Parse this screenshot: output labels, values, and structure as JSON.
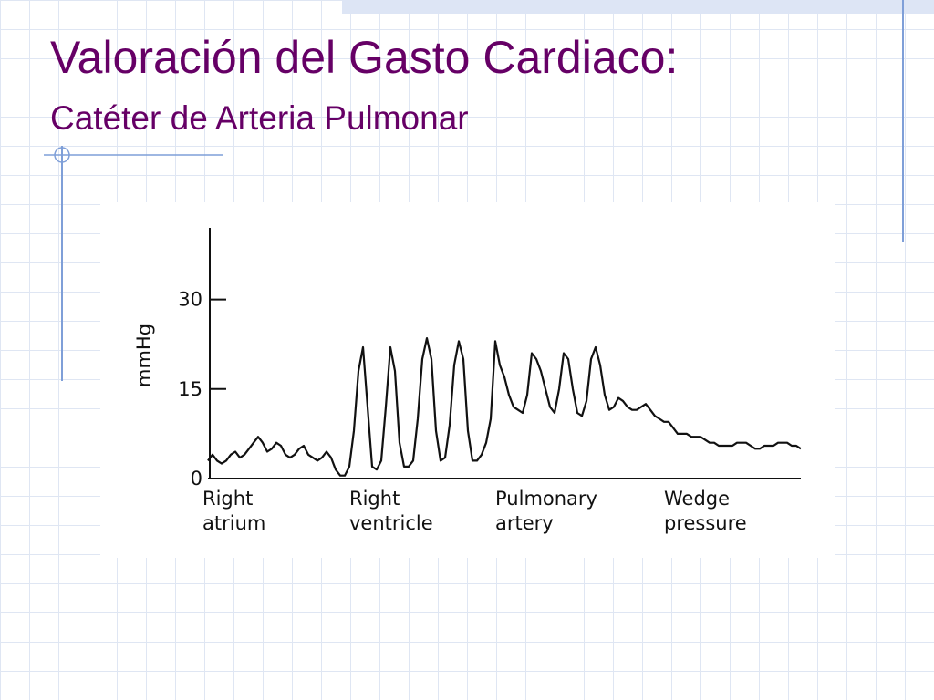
{
  "chart_data": {
    "type": "line",
    "title": "Valoración del Gasto Cardiaco:",
    "subtitle": "Catéter de Arteria Pulmonar",
    "ylabel": "mmHg",
    "ylim": [
      0,
      42
    ],
    "yticks": [
      0,
      15,
      30
    ],
    "color": "#111111",
    "region_labels": [
      [
        "Right",
        "atrium"
      ],
      [
        "Right",
        "ventricle"
      ],
      [
        "Pulmonary",
        "artery"
      ],
      [
        "Wedge",
        "pressure"
      ]
    ],
    "values": [
      3,
      4,
      3,
      2.5,
      3,
      4,
      4.5,
      3.5,
      4,
      5,
      6,
      7,
      6,
      4.5,
      5,
      6,
      5.5,
      4,
      3.5,
      4,
      5,
      5.5,
      4,
      3.5,
      3,
      3.5,
      4.5,
      3.5,
      1.5,
      0.5,
      0.5,
      2,
      8,
      18,
      22,
      12,
      2,
      1.5,
      3,
      12,
      22,
      18,
      6,
      2,
      2,
      3,
      10,
      20,
      23.5,
      20,
      8,
      3,
      3.5,
      9,
      19,
      23,
      20,
      8,
      3,
      3,
      4,
      6,
      10,
      23,
      19,
      17,
      14,
      12,
      11.5,
      11,
      14,
      21,
      20,
      18,
      15,
      12,
      11,
      15,
      21,
      20,
      15,
      11,
      10.5,
      13,
      20,
      22,
      19,
      14,
      11.5,
      12,
      13.5,
      13,
      12,
      11.5,
      11.5,
      12,
      12.5,
      11.5,
      10.5,
      10,
      9.5,
      9.5,
      8.5,
      7.5,
      7.5,
      7.5,
      7,
      7,
      7,
      6.5,
      6,
      6,
      5.5,
      5.5,
      5.5,
      5.5,
      6,
      6,
      6,
      5.5,
      5,
      5,
      5.5,
      5.5,
      5.5,
      6,
      6,
      6,
      5.5,
      5.5,
      5
    ]
  }
}
